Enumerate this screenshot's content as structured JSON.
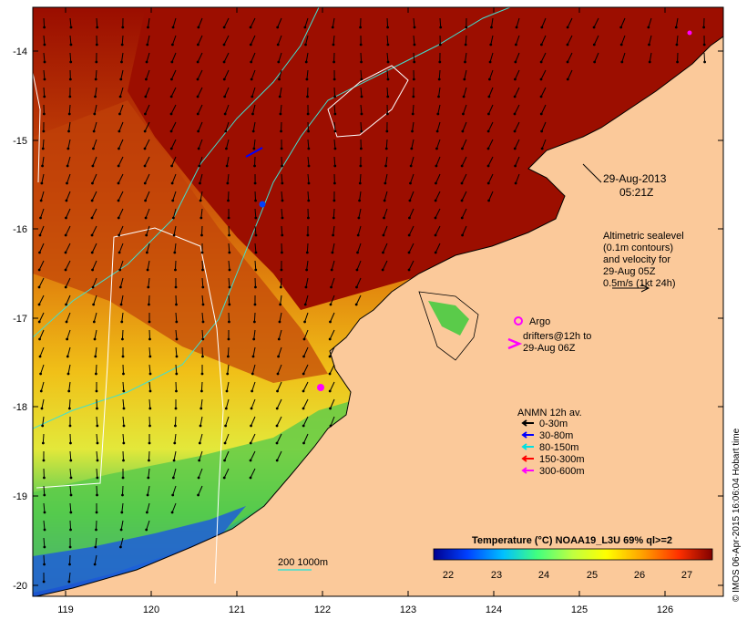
{
  "map": {
    "lon_ticks": [
      "119",
      "120",
      "121",
      "122",
      "123",
      "124",
      "125",
      "126"
    ],
    "lat_ticks": [
      "-14",
      "-15",
      "-16",
      "-17",
      "-18",
      "-19",
      "-20"
    ],
    "timestamp": [
      "29-Aug-2013",
      "05:21Z"
    ],
    "altimetry_note": [
      "Altimetric sealevel",
      "(0.1m contours)",
      "and velocity for",
      "29-Aug 05Z",
      "0.5m/s (1kt 24h)"
    ],
    "argo_label": "Argo",
    "drifters_label": [
      "drifters@12h to",
      "29-Aug 06Z"
    ],
    "anmn": {
      "title": "ANMN 12h av.",
      "items": [
        {
          "label": "0-30m",
          "color": "#000000"
        },
        {
          "label": "30-80m",
          "color": "#0000ff"
        },
        {
          "label": "80-150m",
          "color": "#00e0e0"
        },
        {
          "label": "150-300m",
          "color": "#ff0000"
        },
        {
          "label": "300-600m",
          "color": "#ff00ff"
        }
      ]
    },
    "bathymetry_legend": "200  1000m",
    "colorbar": {
      "title": "Temperature (°C) NOAA19_L3U 69% ql>=2",
      "ticks": [
        "22",
        "23",
        "24",
        "25",
        "26",
        "27"
      ]
    },
    "credit": "© IMOS 06-Apr-2015 16:06:04 Hobart time"
  }
}
